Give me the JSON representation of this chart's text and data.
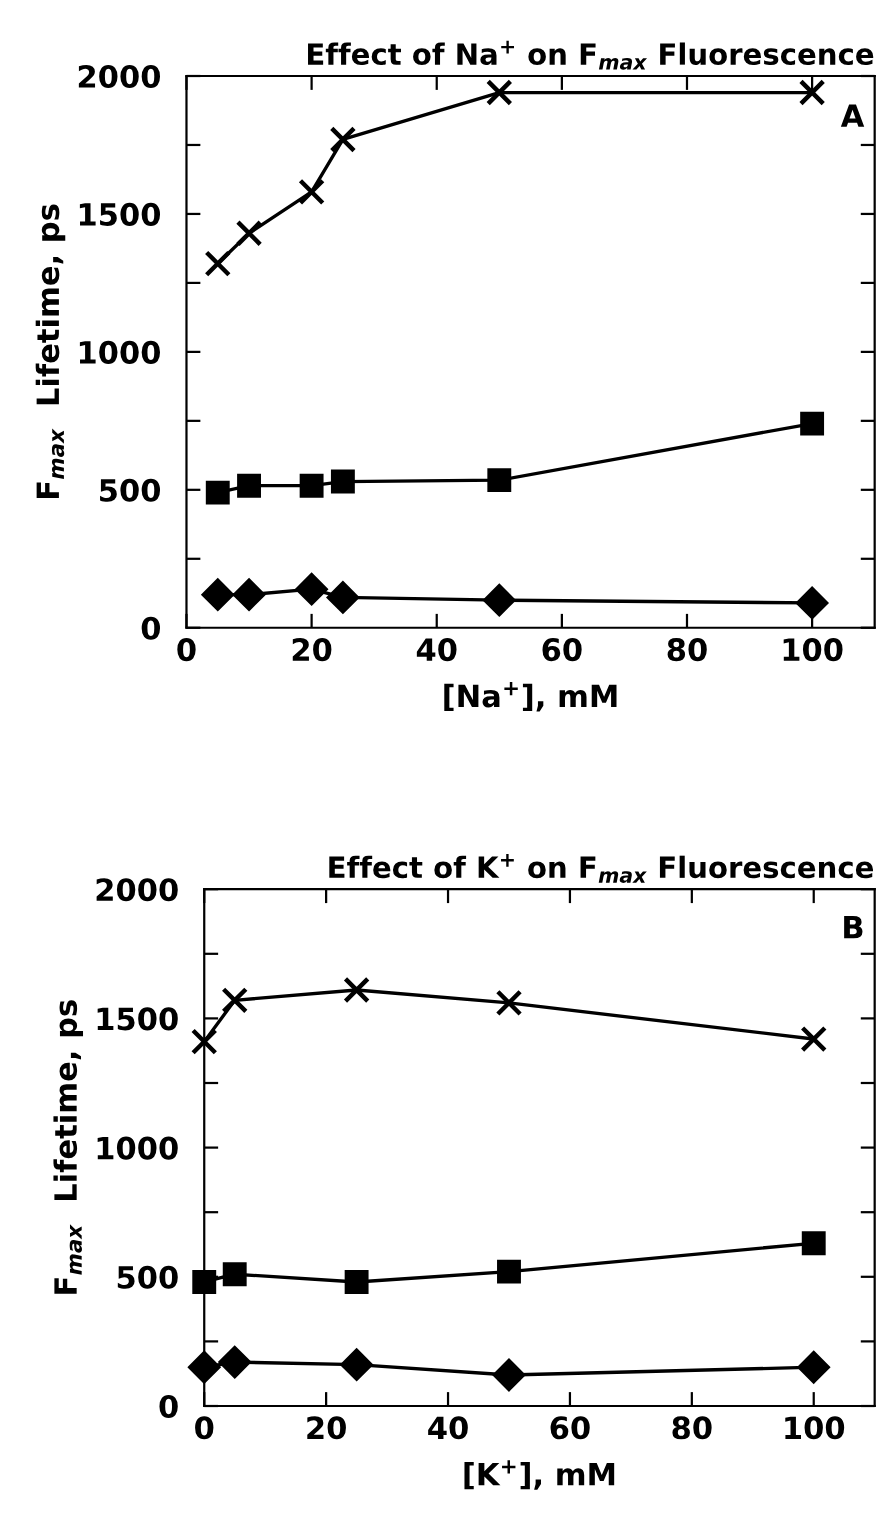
{
  "chart_data": [
    {
      "type": "line",
      "title": "Effect of Na$^{+}$ on F$_{max}$ Fluorescence",
      "xlabel": "[Na$^{+}$], mM",
      "ylabel": "F$_{max}$  Lifetime, ps",
      "annotations": [
        "A"
      ],
      "x": [
        5,
        10,
        20,
        25,
        50,
        100
      ],
      "series": [
        {
          "color": "#000000",
          "marker": "cross",
          "values": [
            1320,
            1430,
            1580,
            1770,
            1940,
            1940
          ]
        },
        {
          "color": "#000000",
          "marker": "square",
          "values": [
            490,
            515,
            515,
            530,
            535,
            740
          ]
        },
        {
          "color": "#000000",
          "marker": "diamond",
          "values": [
            120,
            120,
            140,
            110,
            100,
            90
          ]
        }
      ],
      "xlim": [
        0,
        110
      ],
      "xticks": [
        0,
        20,
        40,
        60,
        80,
        100
      ],
      "ylim": [
        0,
        2000
      ],
      "yticks": [
        0,
        {
          "value": 250,
          "label": null
        },
        500,
        {
          "value": 750,
          "label": null
        },
        1000,
        {
          "value": 1250,
          "label": null
        },
        1500,
        {
          "value": 1750,
          "label": null
        },
        2000
      ],
      "grid": false,
      "legend": false,
      "line_style": "solid"
    },
    {
      "type": "line",
      "title": "Effect of K$^{+}$ on F$_{max}$ Fluorescence",
      "xlabel": "[K$^{+}$], mM",
      "ylabel": "F$_{max}$  Lifetime, ps",
      "annotations": [
        "B"
      ],
      "x": [
        0,
        5,
        25,
        50,
        100
      ],
      "series": [
        {
          "color": "#000000",
          "marker": "cross",
          "values": [
            1410,
            1570,
            1610,
            1560,
            1420
          ]
        },
        {
          "color": "#000000",
          "marker": "square",
          "values": [
            480,
            510,
            480,
            520,
            630
          ]
        },
        {
          "color": "#000000",
          "marker": "diamond",
          "values": [
            150,
            170,
            160,
            120,
            150
          ]
        }
      ],
      "xlim": [
        0,
        110
      ],
      "xticks": [
        0,
        20,
        40,
        60,
        80,
        100
      ],
      "ylim": [
        0,
        2000
      ],
      "yticks": [
        0,
        {
          "value": 250,
          "label": null
        },
        500,
        {
          "value": 750,
          "label": null
        },
        1000,
        {
          "value": 1250,
          "label": null
        },
        1500,
        {
          "value": 1750,
          "label": null
        },
        2000
      ],
      "grid": false,
      "legend": false,
      "line_style": "solid"
    }
  ]
}
